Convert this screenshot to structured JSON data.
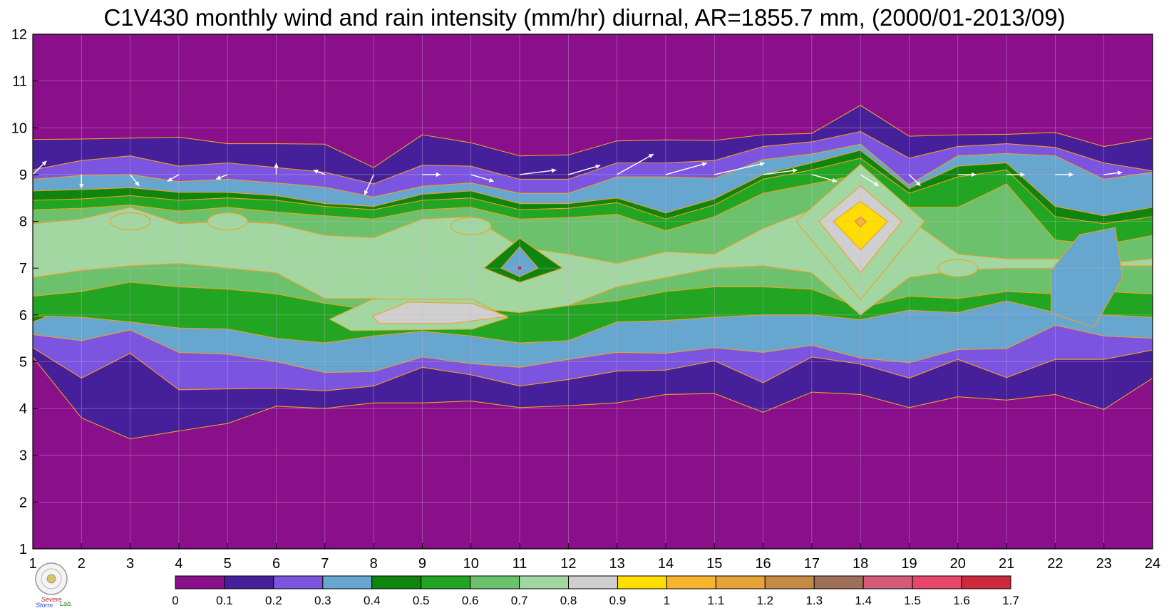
{
  "chart_data": {
    "type": "heatmap",
    "title": "C1V430 monthly wind and rain intensity (mm/hr) diurnal, AR=1855.7 mm, (2000/01-2013/09)",
    "xlabel": "",
    "ylabel": "",
    "xlim": [
      1,
      24
    ],
    "ylim": [
      1,
      12
    ],
    "grid": true,
    "x_ticks": [
      "1",
      "2",
      "3",
      "4",
      "5",
      "6",
      "7",
      "8",
      "9",
      "10",
      "11",
      "12",
      "13",
      "14",
      "15",
      "16",
      "17",
      "18",
      "19",
      "20",
      "21",
      "22",
      "23",
      "24"
    ],
    "y_ticks": [
      "1",
      "2",
      "3",
      "4",
      "5",
      "6",
      "7",
      "8",
      "9",
      "10",
      "11",
      "12"
    ],
    "contour_levels": [
      0,
      0.1,
      0.2,
      0.3,
      0.4,
      0.5,
      0.6,
      0.7,
      0.8,
      0.9,
      1.0,
      1.1,
      1.2,
      1.3,
      1.4,
      1.5,
      1.6,
      1.7
    ],
    "colorbar_labels": [
      "0",
      "0.1",
      "0.2",
      "0.3",
      "0.4",
      "0.5",
      "0.6",
      "0.7",
      "0.8",
      "0.9",
      "1",
      "1.1",
      "1.2",
      "1.3",
      "1.4",
      "1.5",
      "1.6",
      "1.7"
    ],
    "colorbar_colors": [
      "#8a0f8a",
      "#45209a",
      "#7b55e0",
      "#66a6cf",
      "#0f840f",
      "#22a522",
      "#6cc26c",
      "#a2d7a2",
      "#cfcfcf",
      "#ffdd00",
      "#f7b52d",
      "#e6a33a",
      "#c58a45",
      "#a06f5a",
      "#d45a7a",
      "#e8466a",
      "#cc2a3c"
    ],
    "band_boundaries": [
      {
        "level": 0.1,
        "upper": [
          9.75,
          9.76,
          9.78,
          9.8,
          9.66,
          9.66,
          9.65,
          9.15,
          9.85,
          9.68,
          9.4,
          9.42,
          9.72,
          9.74,
          9.73,
          9.85,
          9.88,
          10.48,
          9.82,
          9.85,
          9.86,
          9.9,
          9.6,
          9.78
        ],
        "lower": [
          5.1,
          3.8,
          3.35,
          3.52,
          3.68,
          4.05,
          4.0,
          4.12,
          4.12,
          4.16,
          4.02,
          4.06,
          4.12,
          4.3,
          4.32,
          3.92,
          4.35,
          4.3,
          4.02,
          4.25,
          4.18,
          4.3,
          3.98,
          4.65
        ]
      },
      {
        "level": 0.2,
        "upper": [
          9.1,
          9.3,
          9.4,
          9.18,
          9.25,
          9.15,
          9.05,
          8.8,
          9.2,
          9.18,
          8.9,
          8.9,
          9.25,
          9.25,
          9.3,
          9.6,
          9.7,
          9.92,
          9.35,
          9.6,
          9.66,
          9.58,
          9.25,
          9.08
        ],
        "lower": [
          5.3,
          4.65,
          5.18,
          4.4,
          4.42,
          4.43,
          4.38,
          4.48,
          4.88,
          4.72,
          4.48,
          4.62,
          4.8,
          4.82,
          5.02,
          4.55,
          5.1,
          4.95,
          4.65,
          5.05,
          4.66,
          5.05,
          5.05,
          5.25
        ]
      },
      {
        "level": 0.3,
        "upper": [
          8.9,
          8.98,
          9.0,
          8.85,
          8.9,
          8.82,
          8.73,
          8.52,
          8.75,
          8.82,
          8.6,
          8.6,
          8.95,
          8.95,
          8.92,
          9.32,
          9.44,
          9.65,
          8.78,
          9.4,
          9.45,
          9.4,
          8.9,
          9.05
        ],
        "lower": [
          5.58,
          5.45,
          5.68,
          5.2,
          5.16,
          5.0,
          4.77,
          4.79,
          5.1,
          4.96,
          4.88,
          5.05,
          5.2,
          5.18,
          5.3,
          5.2,
          5.35,
          5.08,
          4.98,
          5.26,
          5.28,
          5.78,
          5.55,
          5.5
        ]
      },
      {
        "level": 0.4,
        "upper": [
          8.65,
          8.68,
          8.72,
          8.62,
          8.62,
          8.55,
          8.38,
          8.32,
          8.58,
          8.65,
          8.38,
          8.38,
          8.5,
          8.18,
          8.48,
          9.0,
          9.25,
          9.52,
          8.7,
          9.18,
          9.25,
          8.32,
          8.12,
          8.3
        ],
        "lower": [
          5.85,
          6.25,
          6.95,
          6.55,
          6.55,
          6.45,
          6.8,
          6.85,
          7.15,
          6.8,
          6.7,
          6.95,
          6.8,
          6.85,
          6.95,
          6.95,
          7.05,
          6.6,
          6.35,
          6.35,
          6.62,
          7.05,
          6.9,
          7.0
        ]
      },
      {
        "level": 0.5,
        "upper": [
          8.45,
          8.48,
          8.55,
          8.45,
          8.5,
          8.45,
          8.32,
          8.25,
          8.45,
          8.5,
          8.25,
          8.28,
          8.4,
          8.05,
          8.35,
          8.9,
          9.1,
          9.35,
          8.6,
          8.95,
          9.1,
          8.1,
          7.95,
          8.1
        ],
        "lower": [
          5.98,
          5.95,
          5.85,
          5.72,
          5.7,
          5.5,
          5.4,
          5.55,
          5.65,
          5.55,
          5.4,
          5.45,
          5.85,
          5.88,
          5.95,
          6.0,
          6.0,
          5.9,
          6.1,
          6.05,
          6.3,
          6.05,
          6.0,
          5.95
        ]
      },
      {
        "level": 0.6,
        "upper": [
          8.25,
          8.28,
          8.35,
          8.22,
          8.3,
          8.2,
          8.12,
          8.05,
          8.25,
          8.3,
          8.05,
          8.08,
          8.15,
          7.8,
          8.1,
          8.6,
          8.8,
          9.0,
          8.3,
          8.3,
          8.8,
          7.6,
          7.5,
          7.7
        ],
        "lower": [
          6.4,
          6.5,
          6.7,
          6.6,
          6.55,
          6.45,
          6.25,
          6.1,
          6.2,
          6.05,
          6.15,
          6.2,
          6.3,
          6.5,
          6.6,
          6.6,
          6.55,
          6.15,
          6.4,
          6.35,
          6.5,
          6.45,
          6.5,
          6.45
        ]
      },
      {
        "level": 0.7,
        "upper": [
          7.95,
          8.05,
          8.3,
          7.95,
          8.0,
          7.95,
          7.7,
          7.65,
          8.05,
          8.1,
          7.45,
          7.3,
          7.1,
          7.35,
          7.3,
          7.85,
          8.25,
          8.9,
          8.05,
          7.3,
          7.2,
          7.2,
          7.1,
          7.2
        ],
        "lower": [
          6.8,
          6.95,
          7.05,
          7.1,
          7.0,
          6.9,
          6.35,
          6.35,
          6.25,
          6.15,
          6.05,
          6.2,
          6.6,
          6.8,
          7.0,
          7.05,
          6.9,
          6.0,
          6.8,
          6.95,
          7.0,
          7.0,
          7.05,
          7.05
        ]
      }
    ],
    "hotspots": [
      {
        "x": 9.0,
        "y": 6.0,
        "value": 0.9
      },
      {
        "x": 18.0,
        "y": 8.0,
        "value": 1.05
      },
      {
        "x": 11.0,
        "y": 7.0,
        "value": 0.2
      },
      {
        "x": 3.0,
        "y": 8.0,
        "value": 0.75
      },
      {
        "x": 5.0,
        "y": 8.0,
        "value": 0.75
      },
      {
        "x": 10.0,
        "y": 7.9,
        "value": 0.75
      },
      {
        "x": 20.0,
        "y": 7.0,
        "value": 0.75
      },
      {
        "x": 22.5,
        "y": 6.8,
        "value": 0.3
      }
    ],
    "wind_vectors": [
      {
        "x": 1,
        "u": 0.6,
        "v": 0.6
      },
      {
        "x": 2,
        "u": 0.0,
        "v": -0.6
      },
      {
        "x": 3,
        "u": 0.4,
        "v": -0.5
      },
      {
        "x": 4,
        "u": -0.5,
        "v": -0.3
      },
      {
        "x": 5,
        "u": -0.5,
        "v": -0.2
      },
      {
        "x": 6,
        "u": 0.0,
        "v": 0.5
      },
      {
        "x": 7,
        "u": -0.5,
        "v": 0.2
      },
      {
        "x": 8,
        "u": -0.4,
        "v": -0.9
      },
      {
        "x": 9,
        "u": 0.8,
        "v": 0.0
      },
      {
        "x": 10,
        "u": 1.0,
        "v": -0.3
      },
      {
        "x": 11,
        "u": 1.6,
        "v": 0.2
      },
      {
        "x": 12,
        "u": 1.4,
        "v": 0.4
      },
      {
        "x": 13,
        "u": 1.6,
        "v": 0.9
      },
      {
        "x": 14,
        "u": 1.8,
        "v": 0.5
      },
      {
        "x": 15,
        "u": 2.2,
        "v": 0.5
      },
      {
        "x": 16,
        "u": 1.5,
        "v": 0.2
      },
      {
        "x": 17,
        "u": 1.1,
        "v": -0.3
      },
      {
        "x": 18,
        "u": 0.8,
        "v": -0.5
      },
      {
        "x": 19,
        "u": 0.5,
        "v": -0.5
      },
      {
        "x": 20,
        "u": 0.8,
        "v": 0.0
      },
      {
        "x": 21,
        "u": 0.8,
        "v": 0.0
      },
      {
        "x": 22,
        "u": 0.8,
        "v": 0.0
      },
      {
        "x": 23,
        "u": 0.8,
        "v": 0.1
      },
      {
        "x": 24,
        "u": 0.7,
        "v": 0.0
      }
    ],
    "wind_level_y": 9.0
  },
  "logo": {
    "text_line1": "Severe",
    "text_line2": "Storm",
    "text_line3": "Lab."
  }
}
